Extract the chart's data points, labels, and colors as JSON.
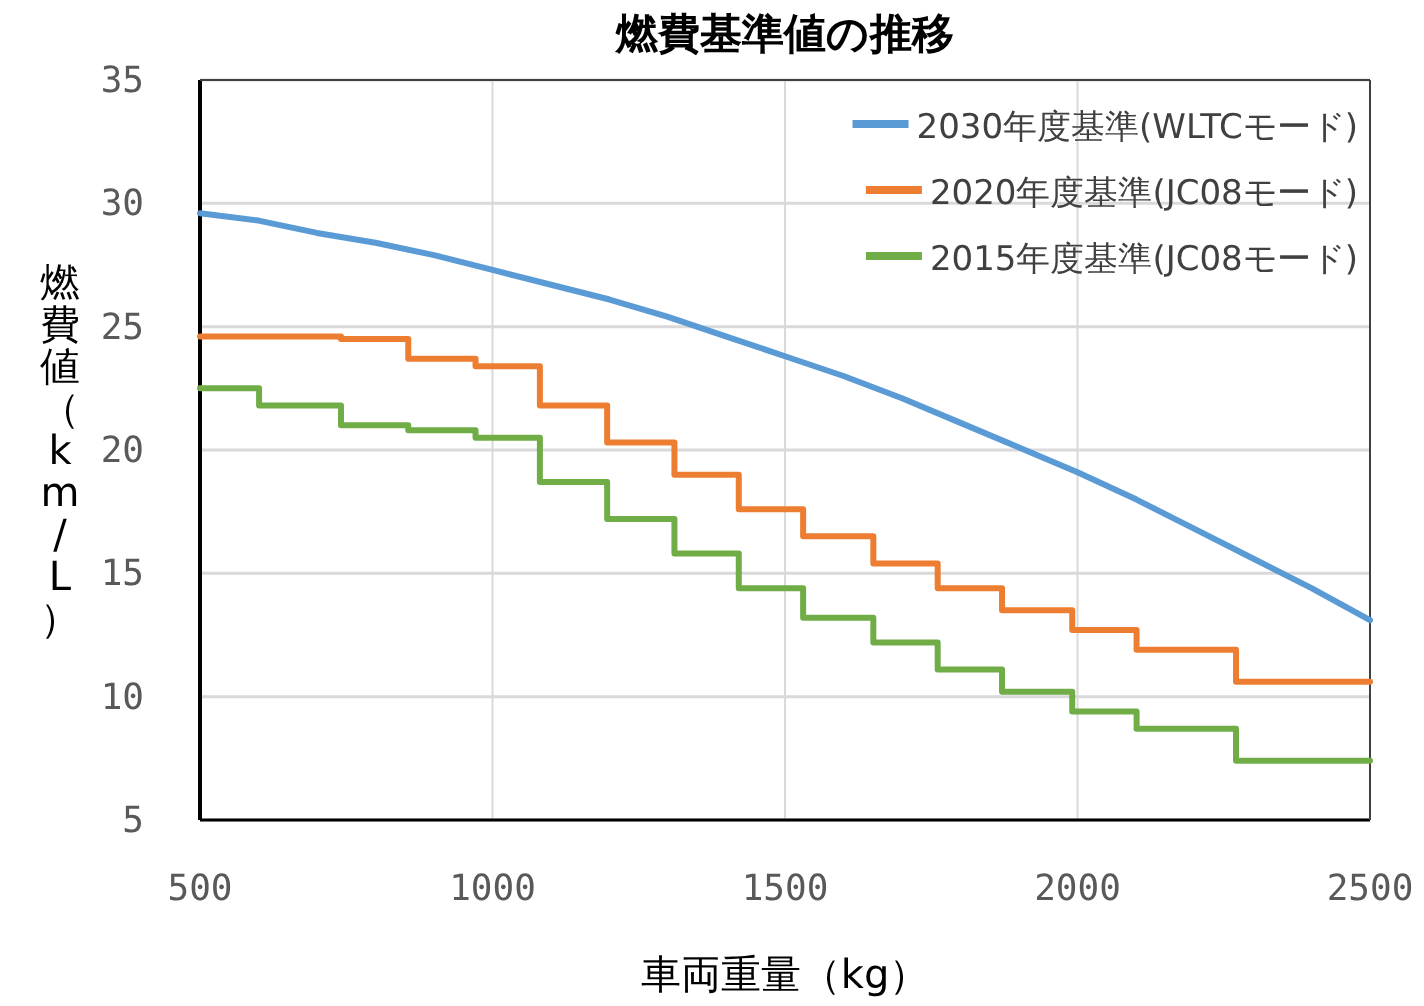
{
  "chart_data": {
    "type": "line",
    "title": "燃費基準値の推移",
    "xlabel": "車両重量（kg）",
    "ylabel": "燃費値（km/L）",
    "xlim": [
      500,
      2500
    ],
    "xticks": [
      500,
      1000,
      1500,
      2000,
      2500
    ],
    "ylim": [
      5,
      35
    ],
    "yticks": [
      5,
      10,
      15,
      20,
      25,
      30,
      35
    ],
    "grid": true,
    "legend": "top right",
    "marker": "none",
    "line_style": "solid",
    "series": [
      {
        "name": "2030年度基準(WLTCモード)",
        "color": "#5b9bd5",
        "x": [
          500,
          600,
          700,
          800,
          900,
          1000,
          1100,
          1200,
          1300,
          1400,
          1500,
          1600,
          1700,
          1800,
          1900,
          2000,
          2100,
          2200,
          2300,
          2400,
          2500
        ],
        "values": [
          29.6,
          29.3,
          28.8,
          28.4,
          27.9,
          27.3,
          26.7,
          26.1,
          25.4,
          24.6,
          23.8,
          23.0,
          22.1,
          21.1,
          20.1,
          19.1,
          18.0,
          16.8,
          15.6,
          14.4,
          13.1
        ]
      },
      {
        "name": "2020年度基準(JC08モード)",
        "color": "#ed7d31",
        "type": "step",
        "x": [
          500,
          741,
          856,
          971,
          1081,
          1196,
          1311,
          1421,
          1531,
          1651,
          1761,
          1871,
          1991,
          2101,
          2271,
          2500
        ],
        "values": [
          24.6,
          24.5,
          23.7,
          23.4,
          21.8,
          20.3,
          19.0,
          17.6,
          16.5,
          15.4,
          14.4,
          13.5,
          12.7,
          11.9,
          10.6,
          10.6
        ]
      },
      {
        "name": "2015年度基準(JC08モード)",
        "color": "#70ad47",
        "type": "step",
        "x": [
          500,
          601,
          741,
          856,
          971,
          1081,
          1196,
          1311,
          1421,
          1531,
          1651,
          1761,
          1871,
          1991,
          2101,
          2271,
          2500
        ],
        "values": [
          22.5,
          21.8,
          21.0,
          20.8,
          20.5,
          18.7,
          17.2,
          15.8,
          14.4,
          13.2,
          12.2,
          11.1,
          10.2,
          9.4,
          8.7,
          7.4,
          7.4
        ]
      }
    ]
  }
}
